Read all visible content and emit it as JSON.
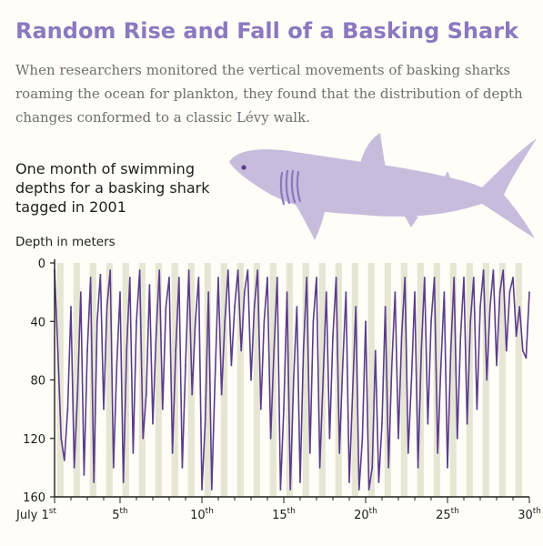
{
  "title": "Random Rise and Fall of a Basking Shark",
  "subtitle": "When researchers monitored the vertical movements of basking sharks roaming the ocean for plankton, they found that the distribution of depth changes conformed to a classic Lévy walk.",
  "chart_title": "One month of swimming depths for a basking shark tagged in 2001",
  "colors": {
    "title": "#8b78bf",
    "series": "#5b3d8c",
    "night_band": "#e6e6d4",
    "shark": "#c8bcdd",
    "background": "#fffdf7"
  },
  "chart_data": {
    "type": "line",
    "ylabel": "Depth in meters",
    "y_inverted": true,
    "ylim": [
      0,
      160
    ],
    "y_ticks": [
      0,
      40,
      80,
      120,
      160
    ],
    "xlim": [
      1,
      30
    ],
    "x_ticks": [
      {
        "value": 1,
        "label": "July 1",
        "suffix": "st"
      },
      {
        "value": 5,
        "label": "5",
        "suffix": "th"
      },
      {
        "value": 10,
        "label": "10",
        "suffix": "th"
      },
      {
        "value": 15,
        "label": "15",
        "suffix": "th"
      },
      {
        "value": 20,
        "label": "20",
        "suffix": "th"
      },
      {
        "value": 25,
        "label": "25",
        "suffix": "th"
      },
      {
        "value": 30,
        "label": "30",
        "suffix": "th"
      }
    ],
    "night_bands": "daily, shaded",
    "series": [
      {
        "x": [
          1.0,
          1.2,
          1.4,
          1.6,
          1.8,
          2.0,
          2.2,
          2.4,
          2.6,
          2.8,
          3.0,
          3.2,
          3.4,
          3.6,
          3.8,
          4.0,
          4.2,
          4.4,
          4.6,
          4.8,
          5.0,
          5.2,
          5.4,
          5.6,
          5.8,
          6.0,
          6.2,
          6.4,
          6.6,
          6.8,
          7.0,
          7.2,
          7.4,
          7.6,
          7.8,
          8.0,
          8.2,
          8.4,
          8.6,
          8.8,
          9.0,
          9.2,
          9.4,
          9.6,
          9.8,
          10.0,
          10.2,
          10.4,
          10.6,
          10.8,
          11.0,
          11.2,
          11.4,
          11.6,
          11.8,
          12.0,
          12.2,
          12.4,
          12.6,
          12.8,
          13.0,
          13.2,
          13.4,
          13.6,
          13.8,
          14.0,
          14.2,
          14.4,
          14.6,
          14.8,
          15.0,
          15.2,
          15.4,
          15.6,
          15.8,
          16.0,
          16.2,
          16.4,
          16.6,
          16.8,
          17.0,
          17.2,
          17.4,
          17.6,
          17.8,
          18.0,
          18.2,
          18.4,
          18.6,
          18.8,
          19.0,
          19.2,
          19.4,
          19.6,
          19.8,
          20.0,
          20.2,
          20.4,
          20.6,
          20.8,
          21.0,
          21.2,
          21.4,
          21.6,
          21.8,
          22.0,
          22.2,
          22.4,
          22.6,
          22.8,
          23.0,
          23.2,
          23.4,
          23.6,
          23.8,
          24.0,
          24.2,
          24.4,
          24.6,
          24.8,
          25.0,
          25.2,
          25.4,
          25.6,
          25.8,
          26.0,
          26.2,
          26.4,
          26.6,
          26.8,
          27.0,
          27.2,
          27.4,
          27.6,
          27.8,
          28.0,
          28.2,
          28.4,
          28.6,
          28.8,
          29.0,
          29.2,
          29.4,
          29.6,
          29.8,
          30.0
        ],
        "y": [
          5,
          60,
          120,
          135,
          100,
          30,
          140,
          90,
          20,
          145,
          60,
          10,
          150,
          40,
          8,
          100,
          30,
          5,
          140,
          70,
          20,
          150,
          60,
          10,
          130,
          40,
          5,
          120,
          90,
          15,
          110,
          50,
          5,
          100,
          30,
          10,
          130,
          60,
          10,
          140,
          70,
          5,
          90,
          40,
          10,
          155,
          110,
          20,
          155,
          80,
          10,
          90,
          40,
          5,
          70,
          30,
          5,
          60,
          20,
          5,
          80,
          30,
          5,
          100,
          40,
          10,
          120,
          60,
          10,
          155,
          100,
          20,
          155,
          80,
          30,
          150,
          60,
          10,
          130,
          40,
          10,
          140,
          80,
          20,
          120,
          50,
          10,
          130,
          70,
          20,
          150,
          90,
          30,
          155,
          120,
          40,
          155,
          140,
          60,
          150,
          110,
          30,
          140,
          70,
          20,
          120,
          50,
          10,
          130,
          80,
          20,
          140,
          60,
          10,
          110,
          40,
          10,
          130,
          70,
          20,
          140,
          60,
          10,
          120,
          50,
          10,
          110,
          40,
          10,
          100,
          30,
          5,
          80,
          30,
          5,
          70,
          20,
          5,
          60,
          20,
          10,
          50,
          30,
          60,
          65,
          20
        ]
      }
    ]
  }
}
